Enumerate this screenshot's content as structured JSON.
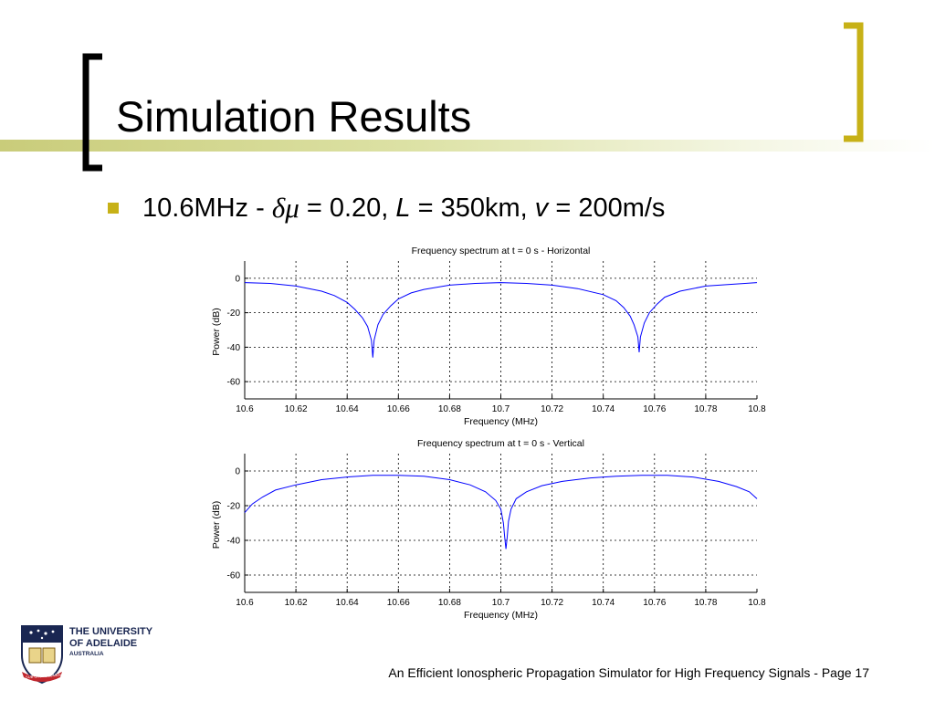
{
  "slide": {
    "title": "Simulation Results",
    "bullet": {
      "prefix": "10.6MHz - ",
      "symbol": "δμ",
      "part1": " = 0.20, ",
      "L": "L",
      "part2": " = 350km, ",
      "v": "v",
      "part3": " = 200m/s"
    },
    "footer": "An Efficient Ionospheric Propagation Simulator for High Frequency Signals - Page 17",
    "logo": {
      "line1": "THE UNIVERSITY",
      "line2": "OF ADELAIDE",
      "line3": "AUSTRALIA",
      "motto": "SUB CRUCE LUMEN"
    },
    "colors": {
      "accent": "#c7b117",
      "band": "#dfe3a8",
      "curve": "#0000ff"
    }
  },
  "chart_data": [
    {
      "type": "line",
      "title": "Frequency spectrum at t = 0 s - Horizontal",
      "xlabel": "Frequency (MHz)",
      "ylabel": "Power (dB)",
      "xlim": [
        10.6,
        10.8
      ],
      "ylim": [
        -70,
        10
      ],
      "xticks": [
        "10.6",
        "10.62",
        "10.64",
        "10.66",
        "10.68",
        "10.7",
        "10.72",
        "10.74",
        "10.76",
        "10.78",
        "10.8"
      ],
      "yticks": [
        "0",
        "-20",
        "-40",
        "-60"
      ],
      "grid": true,
      "series": [
        {
          "x": [
            10.6,
            10.61,
            10.62,
            10.63,
            10.635,
            10.64,
            10.643,
            10.646,
            10.648,
            10.6495,
            10.65,
            10.6505,
            10.652,
            10.654,
            10.657,
            10.66,
            10.665,
            10.67,
            10.68,
            10.69,
            10.7,
            10.71,
            10.72,
            10.73,
            10.74,
            10.745,
            10.748,
            10.7505,
            10.752,
            10.7535,
            10.754,
            10.7545,
            10.756,
            10.758,
            10.761,
            10.764,
            10.77,
            10.78,
            10.79,
            10.8
          ],
          "y": [
            -2.5,
            -3.0,
            -4.5,
            -7.5,
            -10,
            -14,
            -18,
            -23,
            -28,
            -36,
            -46,
            -36,
            -27,
            -21,
            -16,
            -12,
            -8.5,
            -6.5,
            -4,
            -3,
            -2.5,
            -3,
            -4,
            -6,
            -9.5,
            -13,
            -17,
            -22,
            -27,
            -34,
            -43,
            -34,
            -26,
            -20,
            -15,
            -11,
            -7.5,
            -4.5,
            -3.5,
            -2.5
          ]
        }
      ]
    },
    {
      "type": "line",
      "title": "Frequency spectrum at t = 0 s - Vertical",
      "xlabel": "Frequency (MHz)",
      "ylabel": "Power (dB)",
      "xlim": [
        10.6,
        10.8
      ],
      "ylim": [
        -70,
        10
      ],
      "xticks": [
        "10.6",
        "10.62",
        "10.64",
        "10.66",
        "10.68",
        "10.7",
        "10.72",
        "10.74",
        "10.76",
        "10.78",
        "10.8"
      ],
      "yticks": [
        "0",
        "-20",
        "-40",
        "-60"
      ],
      "grid": true,
      "series": [
        {
          "x": [
            10.6,
            10.603,
            10.607,
            10.612,
            10.62,
            10.63,
            10.64,
            10.65,
            10.66,
            10.67,
            10.68,
            10.688,
            10.694,
            10.698,
            10.7,
            10.701,
            10.7015,
            10.702,
            10.7025,
            10.703,
            10.704,
            10.706,
            10.71,
            10.716,
            10.724,
            10.735,
            10.745,
            10.755,
            10.765,
            10.775,
            10.785,
            10.792,
            10.797,
            10.8
          ],
          "y": [
            -24,
            -19,
            -15,
            -11,
            -8,
            -5,
            -3.5,
            -2.5,
            -2.5,
            -3,
            -5,
            -8,
            -12,
            -17,
            -22,
            -30,
            -38,
            -45,
            -38,
            -29,
            -22,
            -16,
            -12,
            -8.5,
            -6,
            -4,
            -3,
            -2.5,
            -2.5,
            -3.5,
            -6,
            -9,
            -12,
            -16
          ]
        }
      ]
    }
  ]
}
